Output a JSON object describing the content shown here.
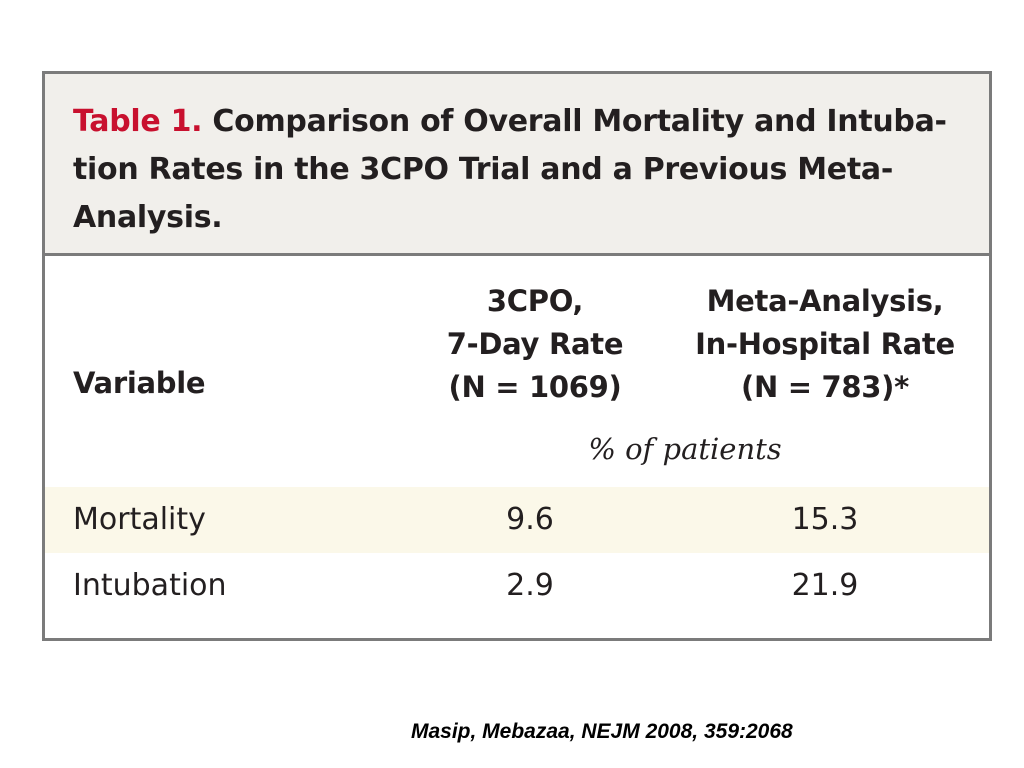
{
  "table": {
    "label": "Table 1.",
    "title": "Comparison of Overall Mortality and Intubation Rates in the 3CPO Trial and a Previous Meta-Analysis.",
    "title_lines": [
      "Comparison of Overall Mortality and Intuba-",
      "tion Rates in the 3CPO Trial and a Previous Meta-",
      "Analysis."
    ],
    "headers": {
      "variable": "Variable",
      "col1": [
        "3CPO,",
        "7-Day Rate",
        "(N = 1069)"
      ],
      "col2": [
        "Meta-Analysis,",
        "In-Hospital Rate",
        "(N = 783)*"
      ]
    },
    "units": "% of patients",
    "rows": [
      {
        "label": "Mortality",
        "col1": "9.6",
        "col2": "15.3"
      },
      {
        "label": "Intubation",
        "col1": "2.9",
        "col2": "21.9"
      }
    ]
  },
  "citation": "Masip, Mebazaa, NEJM 2008, 359:2068"
}
